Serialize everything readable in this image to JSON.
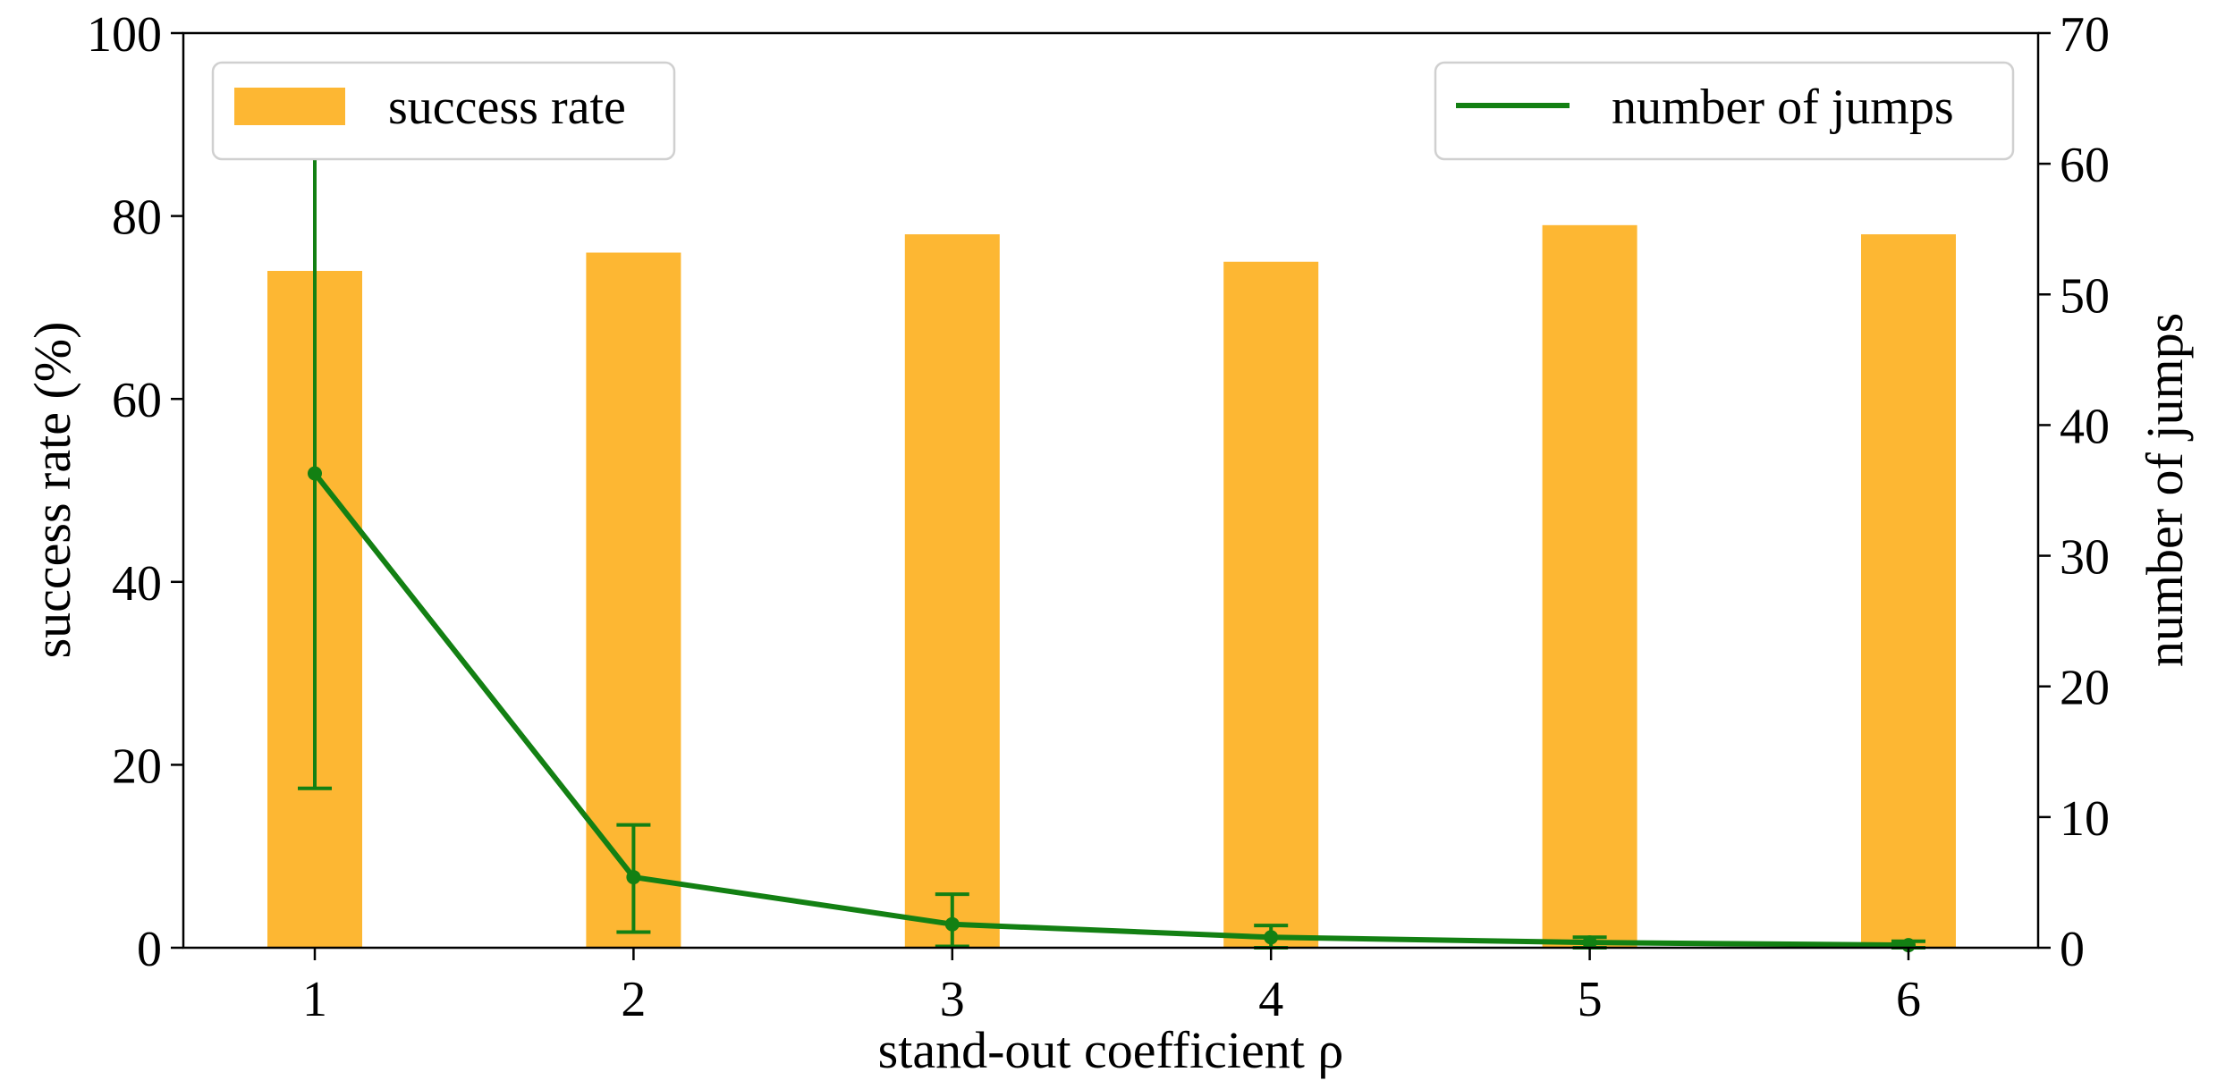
{
  "chart_data": {
    "type": "bar",
    "categories": [
      "1",
      "2",
      "3",
      "4",
      "5",
      "6"
    ],
    "x": [
      1,
      2,
      3,
      4,
      5,
      6
    ],
    "xlabel": "stand-out coefficient ρ",
    "ylabel_left": "success rate (%)",
    "ylabel_right": "number of jumps",
    "ylim_left": [
      0,
      100
    ],
    "ylim_right": [
      0,
      70
    ],
    "yticks_left": [
      0,
      20,
      40,
      60,
      80,
      100
    ],
    "yticks_right": [
      0,
      10,
      20,
      30,
      40,
      50,
      60,
      70
    ],
    "grid": false,
    "series": [
      {
        "name": "success rate",
        "type": "bar",
        "axis": "left",
        "color": "#FDB733",
        "values": [
          74,
          76,
          78,
          75,
          79,
          78
        ]
      },
      {
        "name": "number of jumps",
        "type": "line",
        "axis": "right",
        "color": "#138013",
        "values": [
          36.3,
          5.4,
          1.8,
          0.8,
          0.4,
          0.2
        ],
        "err_low": [
          12.2,
          1.2,
          0.1,
          0.0,
          0.0,
          0.0
        ],
        "err_high": [
          60.6,
          9.4,
          4.1,
          1.7,
          0.8,
          0.5
        ]
      }
    ],
    "legend": [
      {
        "label": "success rate",
        "placement": "top-left"
      },
      {
        "label": "number of jumps",
        "placement": "top-right"
      }
    ]
  }
}
